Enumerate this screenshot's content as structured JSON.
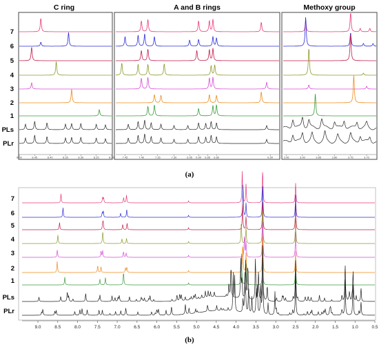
{
  "figure": {
    "caption_a": "(a)",
    "caption_b": "(b)"
  },
  "chart_data": [
    {
      "type": "line",
      "panel": "a",
      "titles": [
        "C ring",
        "A and B rings",
        "Methoxy  group"
      ],
      "row_labels": [
        "7",
        "6",
        "5",
        "4",
        "3",
        "2",
        "1",
        "PLs",
        "PLr"
      ],
      "colors": [
        "#e8387a",
        "#2b2bd6",
        "#c21a4a",
        "#8b9a2a",
        "#d64bd6",
        "#f08a18",
        "#3a9a3a",
        "#222222",
        "#222222"
      ],
      "sub_panels": [
        {
          "name": "C ring",
          "ticks": [
            8.5,
            8.45,
            8.4,
            8.35,
            8.3,
            8.25,
            8.2
          ],
          "tick_labels": [
            "8.50",
            "8.45",
            "8.40",
            "8.35",
            "8.30",
            "8.25",
            "8.20"
          ],
          "xlim": [
            8.5,
            8.2
          ],
          "peaks": [
            [
              [
                8.43,
                1.0
              ]
            ],
            [
              [
                8.43,
                0.3
              ],
              [
                8.34,
                1.0
              ]
            ],
            [
              [
                8.46,
                1.0
              ]
            ],
            [
              [
                8.38,
                1.0
              ]
            ],
            [
              [
                8.46,
                0.45
              ]
            ],
            [
              [
                8.33,
                1.0
              ]
            ],
            [
              [
                8.24,
                0.45
              ]
            ],
            [
              [
                8.48,
                0.4
              ],
              [
                8.45,
                0.6
              ],
              [
                8.41,
                0.5
              ],
              [
                8.35,
                0.4
              ],
              [
                8.33,
                0.45
              ],
              [
                8.3,
                0.45
              ],
              [
                8.25,
                0.4
              ],
              [
                8.22,
                0.35
              ]
            ],
            [
              [
                8.48,
                0.4
              ],
              [
                8.45,
                0.6
              ],
              [
                8.41,
                0.5
              ],
              [
                8.35,
                0.4
              ],
              [
                8.33,
                0.45
              ],
              [
                8.3,
                0.45
              ],
              [
                8.25,
                0.4
              ],
              [
                8.22,
                0.35
              ]
            ]
          ]
        },
        {
          "name": "A and B rings",
          "ticks": [
            7.45,
            7.4,
            7.35,
            7.3,
            6.95,
            6.9,
            6.85,
            6.8,
            6.5
          ],
          "tick_labels": [
            "7.45",
            "7.40",
            "7.35",
            "7.30",
            "6.95",
            "6.90",
            "6.85",
            "6.80",
            "6.50"
          ],
          "peaks": [
            [
              [
                7.4,
                0.8
              ],
              [
                7.38,
                0.9
              ],
              [
                6.9,
                0.8
              ],
              [
                6.84,
                0.8
              ],
              [
                6.82,
                0.9
              ],
              [
                6.55,
                0.7
              ]
            ],
            [
              [
                7.45,
                0.7
              ],
              [
                7.41,
                0.8
              ],
              [
                7.39,
                0.9
              ],
              [
                7.36,
                0.7
              ],
              [
                6.95,
                0.45
              ],
              [
                6.9,
                0.5
              ],
              [
                6.82,
                0.7
              ],
              [
                6.8,
                0.6
              ]
            ],
            [
              [
                7.4,
                0.75
              ],
              [
                7.38,
                0.85
              ],
              [
                6.91,
                0.75
              ],
              [
                6.84,
                0.8
              ],
              [
                6.82,
                0.9
              ]
            ],
            [
              [
                7.46,
                0.9
              ],
              [
                7.41,
                0.8
              ],
              [
                7.38,
                0.8
              ],
              [
                7.33,
                0.85
              ],
              [
                6.83,
                0.7
              ],
              [
                6.81,
                0.75
              ]
            ],
            [
              [
                7.4,
                0.8
              ],
              [
                7.38,
                0.85
              ],
              [
                6.84,
                0.8
              ],
              [
                6.82,
                0.85
              ],
              [
                6.52,
                0.5
              ]
            ],
            [
              [
                7.36,
                0.6
              ],
              [
                7.34,
                0.55
              ],
              [
                6.84,
                0.6
              ],
              [
                6.8,
                0.55
              ],
              [
                6.55,
                0.8
              ]
            ],
            [
              [
                7.38,
                0.7
              ],
              [
                7.36,
                0.8
              ],
              [
                6.9,
                0.55
              ],
              [
                6.82,
                0.75
              ],
              [
                6.8,
                0.8
              ]
            ],
            [
              [
                7.44,
                0.4
              ],
              [
                7.41,
                0.6
              ],
              [
                7.39,
                0.7
              ],
              [
                7.37,
                0.5
              ],
              [
                7.34,
                0.4
              ],
              [
                7.3,
                0.3
              ],
              [
                6.96,
                0.3
              ],
              [
                6.9,
                0.5
              ],
              [
                6.86,
                0.45
              ],
              [
                6.83,
                0.6
              ],
              [
                6.8,
                0.5
              ],
              [
                6.52,
                0.3
              ]
            ],
            [
              [
                7.44,
                0.4
              ],
              [
                7.41,
                0.6
              ],
              [
                7.39,
                0.7
              ],
              [
                7.37,
                0.5
              ],
              [
                7.34,
                0.4
              ],
              [
                7.3,
                0.3
              ],
              [
                6.96,
                0.3
              ],
              [
                6.9,
                0.5
              ],
              [
                6.86,
                0.45
              ],
              [
                6.83,
                0.6
              ],
              [
                6.8,
                0.5
              ],
              [
                6.52,
                0.3
              ]
            ]
          ]
        },
        {
          "name": "Methoxy  group",
          "ticks": [
            3.95,
            3.9,
            3.85,
            3.8,
            3.75,
            3.7
          ],
          "tick_labels": [
            "3.95",
            "3.90",
            "3.85",
            "3.80",
            "3.75",
            "3.70"
          ],
          "xlim": [
            3.96,
            3.67
          ],
          "peaks": [
            [
              [
                3.89,
                0.8
              ],
              [
                3.75,
                1.4
              ],
              [
                3.72,
                0.25
              ],
              [
                3.69,
                0.25
              ]
            ],
            [
              [
                3.89,
                2.2
              ],
              [
                3.75,
                1.0
              ],
              [
                3.71,
                0.2
              ],
              [
                3.68,
                0.2
              ]
            ],
            [
              [
                3.75,
                2.0
              ]
            ],
            [
              [
                3.88,
                2.0
              ],
              [
                3.71,
                0.15
              ]
            ],
            [
              [
                3.88,
                0.3
              ],
              [
                3.7,
                0.2
              ]
            ],
            [
              [
                3.74,
                2.0
              ]
            ],
            [
              [
                3.86,
                1.6
              ]
            ],
            [
              [
                3.93,
                0.7
              ],
              [
                3.9,
                0.8
              ],
              [
                3.88,
                0.6
              ],
              [
                3.84,
                0.7
              ],
              [
                3.8,
                0.5
              ],
              [
                3.77,
                0.6
              ],
              [
                3.73,
                0.5
              ],
              [
                3.7,
                0.4
              ]
            ],
            [
              [
                3.93,
                0.6
              ],
              [
                3.9,
                0.7
              ],
              [
                3.87,
                0.6
              ],
              [
                3.83,
                0.7
              ],
              [
                3.79,
                0.5
              ],
              [
                3.75,
                0.6
              ],
              [
                3.72,
                0.5
              ],
              [
                3.69,
                0.4
              ]
            ]
          ]
        }
      ]
    },
    {
      "type": "line",
      "panel": "b",
      "row_labels": [
        "7",
        "6",
        "5",
        "4",
        "3",
        "2",
        "1",
        "PLs",
        "PLr"
      ],
      "colors": [
        "#e8387a",
        "#2b2bd6",
        "#c21a4a",
        "#8b9a2a",
        "#d64bd6",
        "#f08a18",
        "#3a9a3a",
        "#222222",
        "#222222"
      ],
      "ticks": [
        9.0,
        8.5,
        8.0,
        7.5,
        7.0,
        6.5,
        6.0,
        5.5,
        5.0,
        4.5,
        4.0,
        3.5,
        3.0,
        2.5,
        2.0,
        1.5,
        1.0,
        0.5
      ],
      "tick_labels": [
        "9.0",
        "8.5",
        "8.0",
        "7.5",
        "7.0",
        "6.5",
        "6.0",
        "5.5",
        "5.0",
        "4.5",
        "4.0",
        "3.5",
        "3.0",
        "2.5",
        "2.0",
        "1.5",
        "1.0",
        "0.5"
      ],
      "xlim": [
        9.4,
        0.5
      ]
    }
  ]
}
